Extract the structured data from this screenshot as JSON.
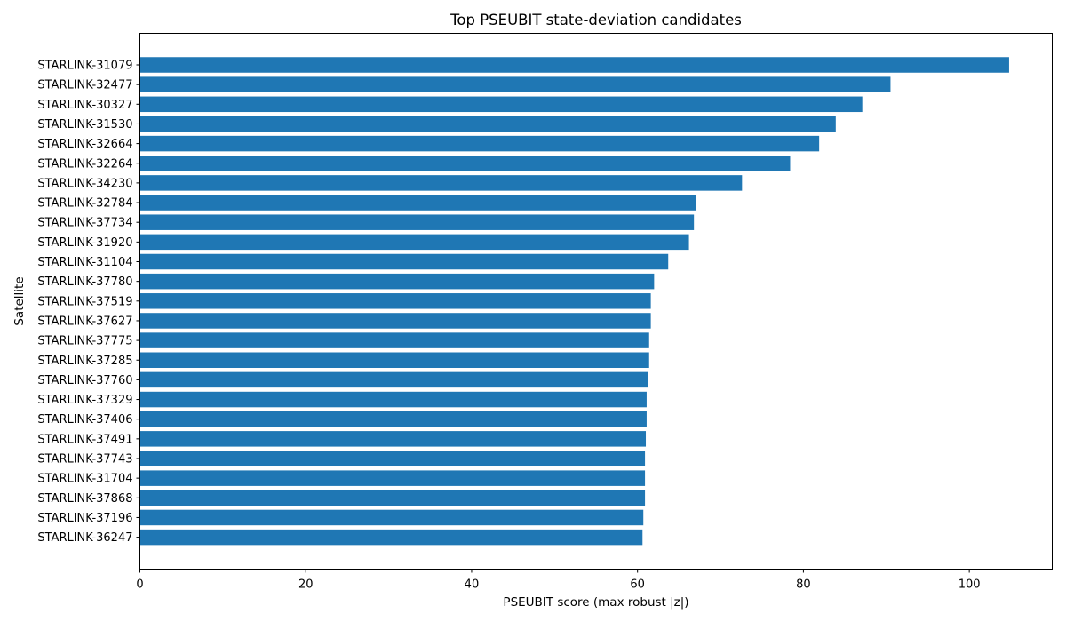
{
  "chart_data": {
    "type": "bar",
    "orientation": "horizontal",
    "title": "Top PSEUBIT state-deviation candidates",
    "xlabel": "PSEUBIT score (max robust |z|)",
    "ylabel": "Satellite",
    "xlim": [
      0,
      110
    ],
    "xticks": [
      0,
      20,
      40,
      60,
      80,
      100
    ],
    "grid": false,
    "bar_color": "#1f77b4",
    "categories": [
      "STARLINK-31079",
      "STARLINK-32477",
      "STARLINK-30327",
      "STARLINK-31530",
      "STARLINK-32664",
      "STARLINK-32264",
      "STARLINK-34230",
      "STARLINK-32784",
      "STARLINK-37734",
      "STARLINK-31920",
      "STARLINK-31104",
      "STARLINK-37780",
      "STARLINK-37519",
      "STARLINK-37627",
      "STARLINK-37775",
      "STARLINK-37285",
      "STARLINK-37760",
      "STARLINK-37329",
      "STARLINK-37406",
      "STARLINK-37491",
      "STARLINK-37743",
      "STARLINK-31704",
      "STARLINK-37868",
      "STARLINK-37196",
      "STARLINK-36247"
    ],
    "values": [
      104.8,
      90.5,
      87.1,
      83.9,
      81.9,
      78.4,
      72.6,
      67.1,
      66.8,
      66.2,
      63.7,
      62.0,
      61.6,
      61.6,
      61.4,
      61.4,
      61.3,
      61.1,
      61.1,
      61.0,
      60.9,
      60.9,
      60.9,
      60.7,
      60.6
    ]
  }
}
